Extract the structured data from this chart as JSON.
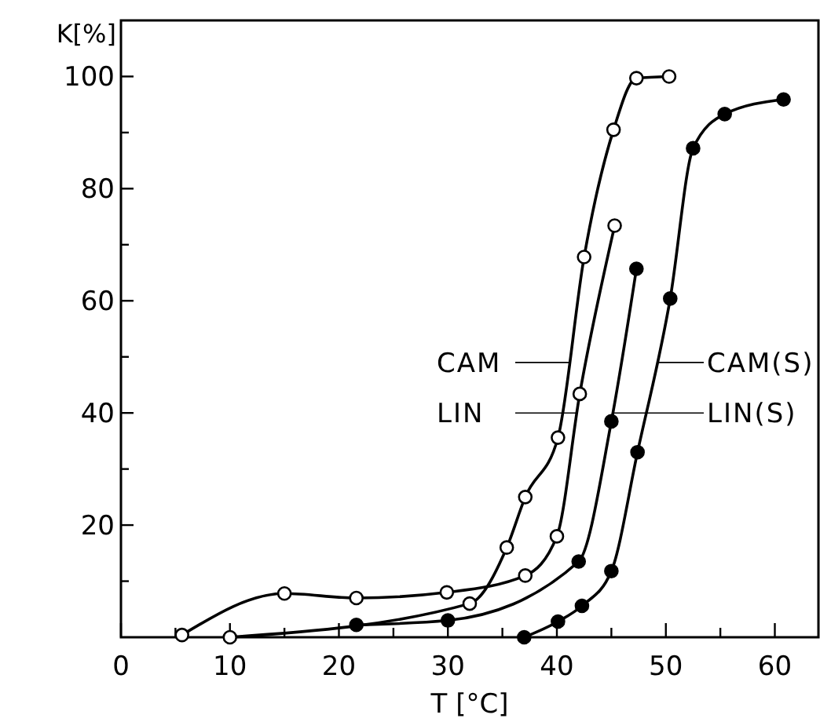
{
  "chart_data": {
    "type": "line",
    "xlabel": "T [°C]",
    "ylabel": "K[%]",
    "xlim": [
      0,
      64
    ],
    "ylim": [
      0,
      110
    ],
    "xticks": [
      0,
      {
        "value": 5,
        "label": null
      },
      10,
      {
        "value": 15,
        "label": null
      },
      20,
      {
        "value": 25,
        "label": null
      },
      30,
      {
        "value": 35,
        "label": null
      },
      40,
      {
        "value": 45,
        "label": null
      },
      50,
      {
        "value": 55,
        "label": null
      },
      60
    ],
    "yticks": [
      {
        "value": 10,
        "label": null
      },
      20,
      {
        "value": 30,
        "label": null
      },
      40,
      {
        "value": 50,
        "label": null
      },
      60,
      {
        "value": 70,
        "label": null
      },
      80,
      {
        "value": 90,
        "label": null
      },
      100
    ],
    "marker": "circle",
    "grid": false,
    "legend": "right",
    "series": [
      {
        "name": "CAM",
        "color": "#000000",
        "x": [
          10,
          32,
          35.4,
          37.1,
          40.1,
          42.5,
          45.2,
          47.3,
          50.3
        ],
        "values": [
          0,
          6,
          16,
          25,
          35.6,
          67.8,
          90.5,
          99.7,
          100
        ]
      },
      {
        "name": "LIN",
        "color": "#000000",
        "x": [
          5.6,
          15,
          21.6,
          29.9,
          37.1,
          40,
          42.1,
          45.3
        ],
        "values": [
          0.4,
          7.8,
          7,
          8,
          11,
          18,
          43.4,
          73.4
        ]
      },
      {
        "name": "CAM(S)",
        "color": "#000000",
        "x": [
          37,
          40.1,
          42.3,
          45,
          47.4,
          50.4,
          52.5,
          55.4,
          60.8
        ],
        "values": [
          0,
          2.8,
          5.6,
          11.8,
          33,
          60.4,
          87.2,
          93.3,
          95.9
        ]
      },
      {
        "name": "LIN(S)",
        "color": "#000000",
        "x": [
          21.6,
          30,
          42,
          45,
          47.3
        ],
        "values": [
          2.2,
          3,
          13.5,
          38.5,
          65.7
        ]
      }
    ]
  }
}
